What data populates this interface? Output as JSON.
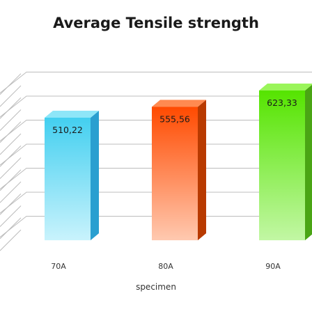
{
  "chart_data": {
    "type": "bar",
    "title": "Average Tensile strength",
    "xlabel": "specimen",
    "ylabel": "",
    "categories": [
      "70A",
      "80A",
      "90A"
    ],
    "values": [
      510.22,
      555.56,
      623.33
    ],
    "value_labels": [
      "510,22",
      "555,56",
      "623,33"
    ],
    "ylim": [
      0,
      700
    ],
    "grid": true,
    "legend": "none",
    "style": "3d-columns",
    "colors": {
      "70A": "#5ad8f2",
      "80A": "#ff5a0a",
      "90A": "#6ce81e"
    }
  }
}
